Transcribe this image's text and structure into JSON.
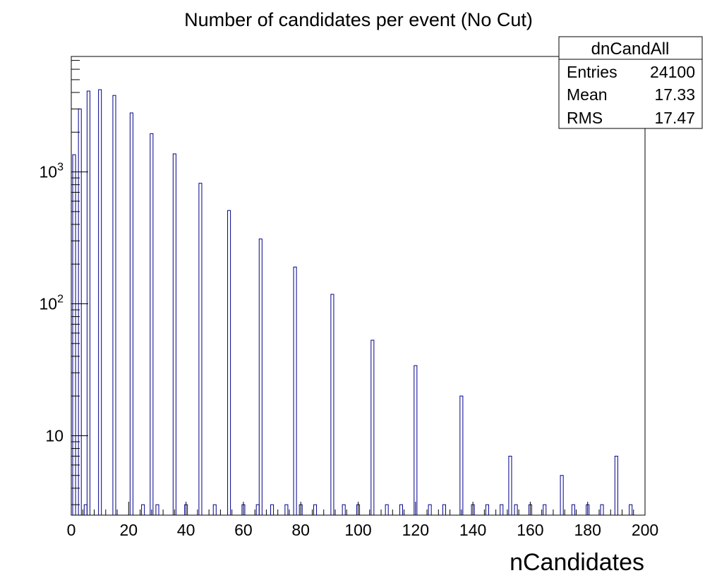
{
  "chart_data": {
    "type": "bar",
    "title": "Number of candidates per event (No Cut)",
    "xlabel": "nCandidates",
    "ylabel": "",
    "xlim": [
      0,
      200
    ],
    "ylim": [
      2.5,
      7500
    ],
    "y_scale": "log",
    "grid": false,
    "bar_color": "#00008b",
    "x_ticks": [
      0,
      20,
      40,
      60,
      80,
      100,
      120,
      140,
      160,
      180,
      200
    ],
    "x_tick_labels": [
      "0",
      "20",
      "40",
      "60",
      "80",
      "100",
      "120",
      "140",
      "160",
      "180",
      "200"
    ],
    "y_ticks": [
      10,
      100,
      1000
    ],
    "y_tick_labels": [
      {
        "base": "10",
        "exp": ""
      },
      {
        "base": "10",
        "exp": "2"
      },
      {
        "base": "10",
        "exp": "3"
      }
    ],
    "bins": [
      {
        "x": 1,
        "y": 1350
      },
      {
        "x": 3,
        "y": 3000
      },
      {
        "x": 6,
        "y": 4100
      },
      {
        "x": 10,
        "y": 4200
      },
      {
        "x": 15,
        "y": 3800
      },
      {
        "x": 21,
        "y": 2800
      },
      {
        "x": 28,
        "y": 1950
      },
      {
        "x": 36,
        "y": 1370
      },
      {
        "x": 45,
        "y": 820
      },
      {
        "x": 55,
        "y": 510
      },
      {
        "x": 66,
        "y": 310
      },
      {
        "x": 78,
        "y": 190
      },
      {
        "x": 91,
        "y": 118
      },
      {
        "x": 105,
        "y": 53
      },
      {
        "x": 120,
        "y": 34
      },
      {
        "x": 136,
        "y": 20
      },
      {
        "x": 153,
        "y": 7
      },
      {
        "x": 171,
        "y": 5
      },
      {
        "x": 190,
        "y": 7
      },
      {
        "x": 5,
        "y": 3
      },
      {
        "x": 25,
        "y": 3
      },
      {
        "x": 30,
        "y": 3
      },
      {
        "x": 40,
        "y": 3
      },
      {
        "x": 50,
        "y": 3
      },
      {
        "x": 60,
        "y": 3
      },
      {
        "x": 65,
        "y": 3
      },
      {
        "x": 70,
        "y": 3
      },
      {
        "x": 75,
        "y": 3
      },
      {
        "x": 80,
        "y": 3
      },
      {
        "x": 85,
        "y": 3
      },
      {
        "x": 95,
        "y": 3
      },
      {
        "x": 100,
        "y": 3
      },
      {
        "x": 110,
        "y": 3
      },
      {
        "x": 115,
        "y": 3
      },
      {
        "x": 125,
        "y": 3
      },
      {
        "x": 130,
        "y": 3
      },
      {
        "x": 140,
        "y": 3
      },
      {
        "x": 145,
        "y": 3
      },
      {
        "x": 150,
        "y": 3
      },
      {
        "x": 155,
        "y": 3
      },
      {
        "x": 160,
        "y": 3
      },
      {
        "x": 165,
        "y": 3
      },
      {
        "x": 175,
        "y": 3
      },
      {
        "x": 180,
        "y": 3
      },
      {
        "x": 185,
        "y": 3
      },
      {
        "x": 195,
        "y": 3
      }
    ],
    "stats_box": {
      "name": "dnCandAll",
      "position": "top-right",
      "rows": [
        {
          "label": "Entries",
          "value": "24100"
        },
        {
          "label": "Mean",
          "value": "17.33"
        },
        {
          "label": "RMS",
          "value": "17.47"
        }
      ]
    }
  }
}
